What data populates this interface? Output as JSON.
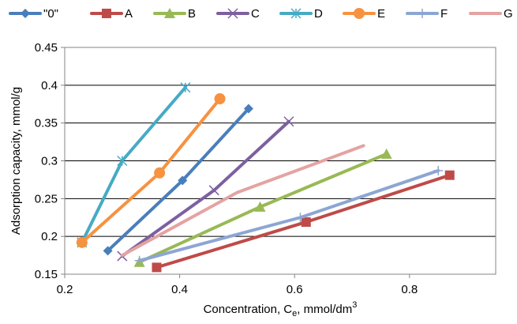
{
  "chart_data": {
    "type": "line",
    "xlabel": "Concentration, C",
    "xlabel_sub": "e",
    "xlabel_unit": ", mmol/dm",
    "xlabel_sup": "3",
    "ylabel": "Adsorption capacity, mmol/g",
    "xlim": [
      0.2,
      0.95
    ],
    "ylim": [
      0.15,
      0.45
    ],
    "xticks": [
      "0.2",
      "0.4",
      "0.6",
      "0.8"
    ],
    "yticks": [
      "0.15",
      "0.2",
      "0.25",
      "0.3",
      "0.35",
      "0.4",
      "0.45"
    ],
    "grid": "horizontal",
    "legend_position": "top",
    "series": [
      {
        "name": "\"0\"",
        "color": "#4a7ebb",
        "marker": "diamond",
        "x": [
          0.275,
          0.405,
          0.52
        ],
        "y": [
          0.181,
          0.274,
          0.369
        ]
      },
      {
        "name": "A",
        "color": "#be4b48",
        "marker": "square",
        "x": [
          0.36,
          0.62,
          0.87
        ],
        "y": [
          0.159,
          0.219,
          0.281
        ]
      },
      {
        "name": "B",
        "color": "#98b954",
        "marker": "triangle",
        "x": [
          0.33,
          0.54,
          0.76
        ],
        "y": [
          0.166,
          0.239,
          0.309
        ]
      },
      {
        "name": "C",
        "color": "#7d60a0",
        "marker": "x",
        "x": [
          0.3,
          0.46,
          0.59
        ],
        "y": [
          0.174,
          0.261,
          0.352
        ]
      },
      {
        "name": "D",
        "color": "#46aac5",
        "marker": "star",
        "x": [
          0.23,
          0.3,
          0.41
        ],
        "y": [
          0.192,
          0.3,
          0.397
        ]
      },
      {
        "name": "E",
        "color": "#f69240",
        "marker": "circle",
        "x": [
          0.23,
          0.365,
          0.47
        ],
        "y": [
          0.192,
          0.284,
          0.382
        ]
      },
      {
        "name": "F",
        "color": "#8ca6d3",
        "marker": "plus",
        "x": [
          0.33,
          0.61,
          0.85
        ],
        "y": [
          0.168,
          0.225,
          0.287
        ]
      },
      {
        "name": "G",
        "color": "#e4a3a1",
        "marker": "none",
        "x": [
          0.3,
          0.5,
          0.72
        ],
        "y": [
          0.175,
          0.258,
          0.32
        ]
      }
    ]
  }
}
